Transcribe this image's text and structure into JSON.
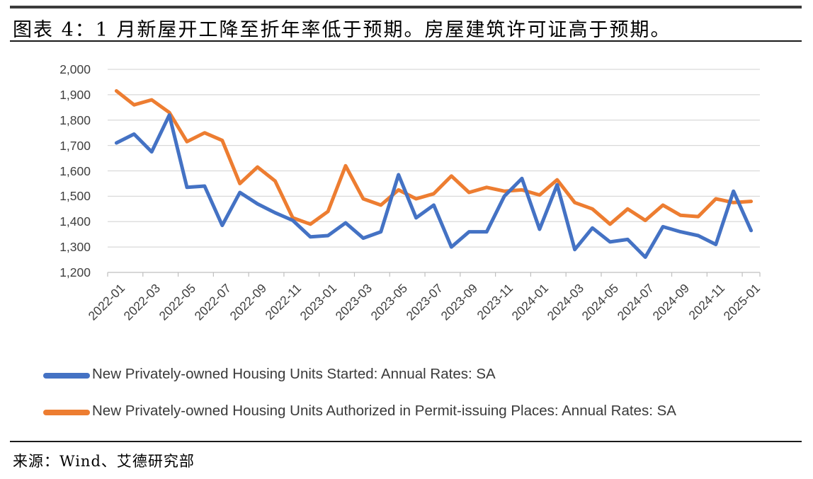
{
  "figure": {
    "title": "图表 4：1 月新屋开工降至折年率低于预期。房屋建筑许可证高于预期。",
    "source": "来源：Wind、艾德研究部"
  },
  "chart_data": {
    "type": "line",
    "categories": [
      "2022-01",
      "2022-02",
      "2022-03",
      "2022-04",
      "2022-05",
      "2022-06",
      "2022-07",
      "2022-08",
      "2022-09",
      "2022-10",
      "2022-11",
      "2022-12",
      "2023-01",
      "2023-02",
      "2023-03",
      "2023-04",
      "2023-05",
      "2023-06",
      "2023-07",
      "2023-08",
      "2023-09",
      "2023-10",
      "2023-11",
      "2023-12",
      "2024-01",
      "2024-02",
      "2024-03",
      "2024-04",
      "2024-05",
      "2024-06",
      "2024-07",
      "2024-08",
      "2024-09",
      "2024-10",
      "2024-11",
      "2024-12",
      "2025-01"
    ],
    "series": [
      {
        "name": "New Privately-owned Housing Units Authorized in Permit-issuing Places: Annual Rates: SA",
        "color": "#ED7D31",
        "values": [
          1915,
          1860,
          1880,
          1830,
          1715,
          1750,
          1720,
          1550,
          1615,
          1560,
          1415,
          1390,
          1440,
          1620,
          1490,
          1465,
          1525,
          1490,
          1510,
          1580,
          1515,
          1535,
          1520,
          1525,
          1505,
          1565,
          1475,
          1450,
          1390,
          1450,
          1405,
          1465,
          1425,
          1420,
          1490,
          1475,
          1480
        ]
      },
      {
        "name": "New Privately-owned Housing Units Started: Annual Rates: SA",
        "color": "#4472C4",
        "values": [
          1710,
          1745,
          1675,
          1820,
          1535,
          1540,
          1385,
          1515,
          1470,
          1435,
          1405,
          1340,
          1345,
          1395,
          1335,
          1360,
          1585,
          1415,
          1465,
          1300,
          1360,
          1360,
          1500,
          1570,
          1370,
          1545,
          1290,
          1375,
          1320,
          1330,
          1260,
          1380,
          1360,
          1345,
          1310,
          1520,
          1365
        ]
      }
    ],
    "ylim": [
      1200,
      2000
    ],
    "ytick_step": 100,
    "ytick_labels": [
      "2,000",
      "1,900",
      "1,800",
      "1,700",
      "1,600",
      "1,500",
      "1,400",
      "1,300",
      "1,200"
    ],
    "xtick_labels": [
      "2022-01",
      "2022-03",
      "2022-05",
      "2022-07",
      "2022-09",
      "2022-11",
      "2023-01",
      "2023-03",
      "2023-05",
      "2023-07",
      "2023-09",
      "2023-11",
      "2024-01",
      "2024-03",
      "2024-05",
      "2024-07",
      "2024-09",
      "2024-11",
      "2025-01"
    ],
    "grid": true,
    "legend_position": "bottom-left",
    "colors": {
      "gridline": "#D9D9D9",
      "axis": "#BFBFBF",
      "tick_label": "#3f3f3f"
    }
  }
}
